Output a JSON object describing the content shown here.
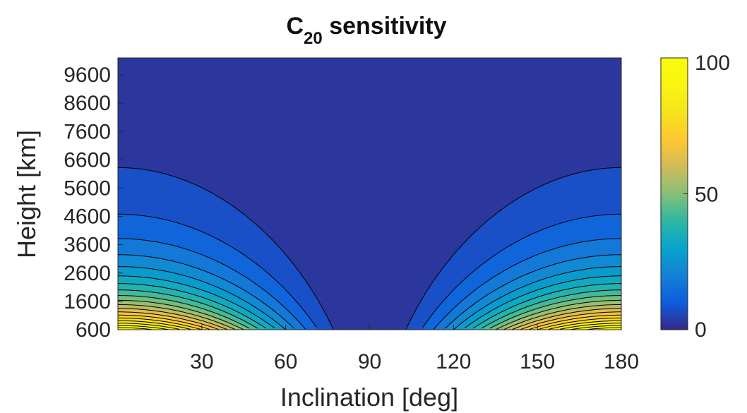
{
  "chart_data": {
    "type": "heatmap",
    "subtype": "filled-contour",
    "title": "C",
    "title_subscript": "20",
    "title_rest": " sensitivity",
    "xlabel": "Inclination [deg]",
    "ylabel": "Height [km]",
    "xlim": [
      0,
      180
    ],
    "ylim": [
      600,
      10200
    ],
    "x_ticks": [
      30,
      60,
      90,
      120,
      150,
      180
    ],
    "y_ticks": [
      600,
      1600,
      2600,
      3600,
      4600,
      5600,
      6600,
      7600,
      8600,
      9600
    ],
    "colorbar": {
      "colormap": "parula",
      "min": 0,
      "max": 100,
      "ticks": [
        0,
        50,
        100
      ]
    },
    "contour_levels": [
      5,
      10,
      15,
      20,
      25,
      30,
      35,
      40,
      45,
      50,
      55,
      60,
      65,
      70,
      75,
      80,
      85,
      90,
      95
    ],
    "max_value_location": {
      "height_km": 600,
      "inclination_deg": [
        0,
        180
      ]
    },
    "min_value_location": {
      "inclination_deg": 90
    }
  }
}
